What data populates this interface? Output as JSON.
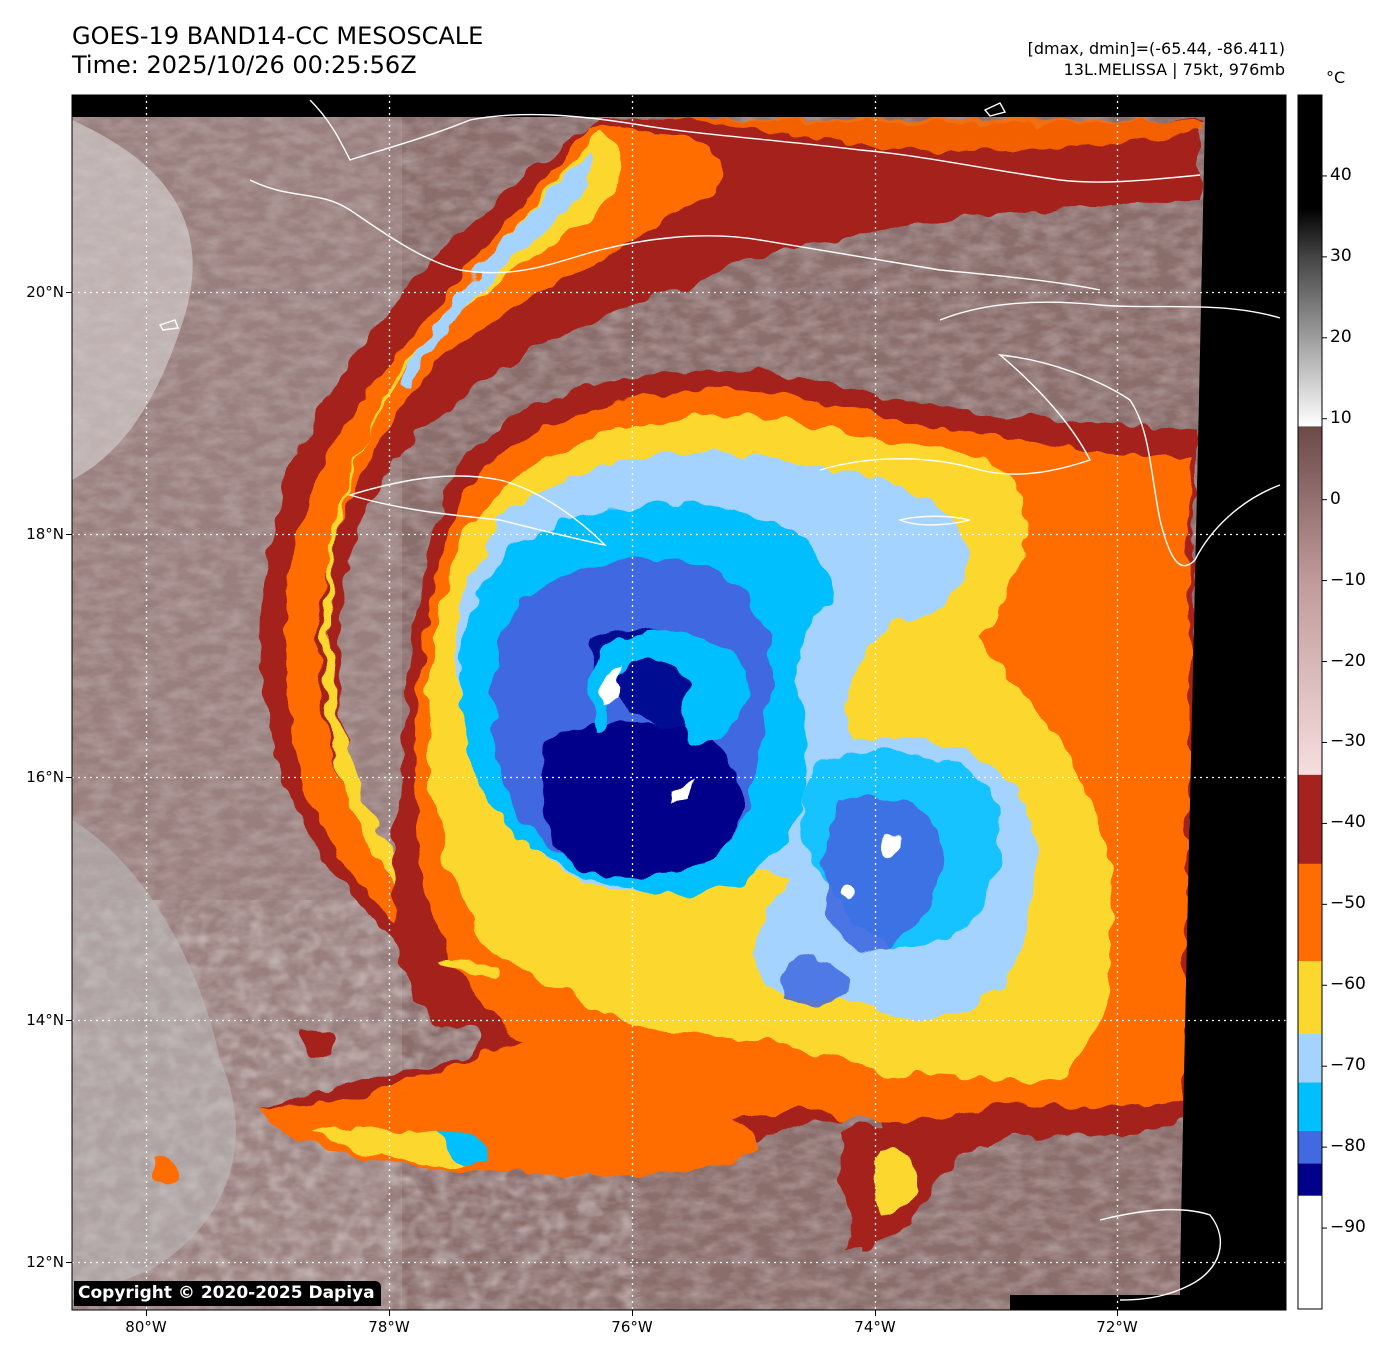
{
  "header": {
    "title_line1": "GOES-19 BAND14-CC MESOSCALE",
    "title_line2": "Time: 2025/10/26 00:25:56Z",
    "stats_line1": "[dmax, dmin]=(-65.44, -86.411)",
    "stats_line2": "13L.MELISSA | 75kt, 976mb"
  },
  "map": {
    "lat_labels": [
      "20°N",
      "18°N",
      "16°N",
      "14°N",
      "12°N"
    ],
    "lon_labels": [
      "80°W",
      "78°W",
      "76°W",
      "74°W",
      "72°W"
    ],
    "storm_name": "13L.MELISSA",
    "storm_center": {
      "lat": 16.3,
      "lon": -75.9
    }
  },
  "colorbar": {
    "unit": "°C",
    "ticks": [
      "40",
      "30",
      "20",
      "10",
      "0",
      "−10",
      "−20",
      "−30",
      "−40",
      "−50",
      "−60",
      "−70",
      "−80",
      "−90"
    ],
    "range": [
      -100,
      50
    ],
    "segments": [
      {
        "from": -100,
        "to": -86,
        "color": "#ffffff"
      },
      {
        "from": -86,
        "to": -82,
        "color": "#00008b"
      },
      {
        "from": -82,
        "to": -78,
        "color": "#4169e1"
      },
      {
        "from": -78,
        "to": -72,
        "color": "#00bfff"
      },
      {
        "from": -72,
        "to": -66,
        "color": "#a5d3ff"
      },
      {
        "from": -66,
        "to": -57,
        "color": "#fcd82f"
      },
      {
        "from": -57,
        "to": -45,
        "color": "#ff6c00"
      },
      {
        "from": -45,
        "to": -34,
        "color": "#a5221e"
      }
    ],
    "gradient_stops": [
      {
        "value": -34,
        "color": "#f6dede"
      },
      {
        "value": -10,
        "color": "#c09a9a"
      },
      {
        "value": 9,
        "color": "#6b4a48"
      },
      {
        "value": 9.1,
        "color": "#ffffff"
      },
      {
        "value": 30,
        "color": "#444444"
      },
      {
        "value": 36,
        "color": "#000000"
      },
      {
        "value": 50,
        "color": "#000000"
      }
    ]
  },
  "copyright": "Copyright © 2020-2025 Dapiya"
}
